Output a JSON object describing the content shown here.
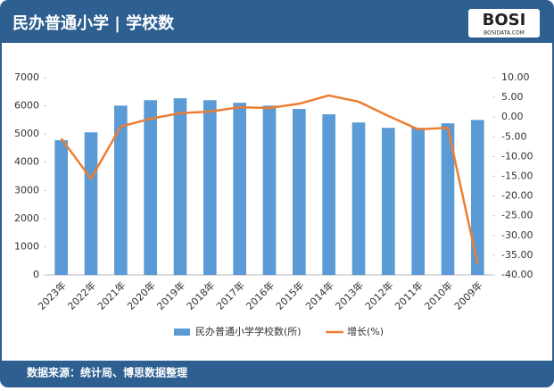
{
  "chart_data": {
    "type": "bar_line",
    "title": "民办普通小学 | 学校数",
    "source": "数据来源：统计局、博思数据整理",
    "categories": [
      "2023年",
      "2022年",
      "2021年",
      "2020年",
      "2019年",
      "2018年",
      "2017年",
      "2016年",
      "2015年",
      "2014年",
      "2013年",
      "2012年",
      "2011年",
      "2010年",
      "2009年"
    ],
    "series": [
      {
        "name": "民办普通小学学校数(所)",
        "color": "#5b9bd5",
        "type": "bar",
        "values": [
          4780,
          5060,
          6010,
          6200,
          6270,
          6200,
          6110,
          6010,
          5890,
          5700,
          5410,
          5220,
          5220,
          5380,
          5500
        ]
      },
      {
        "name": "增长(%)",
        "color": "#ed7d31",
        "type": "line",
        "axis": "y2",
        "values": [
          -5.4,
          -15.6,
          -2.4,
          -0.4,
          1.0,
          1.4,
          2.5,
          2.3,
          3.4,
          5.5,
          3.9,
          0.3,
          -3.1,
          -2.7,
          -37.2
        ]
      }
    ],
    "ylim": [
      0,
      7000
    ],
    "yticks": [
      0,
      1000,
      2000,
      3000,
      4000,
      5000,
      6000,
      7000
    ],
    "y2lim": [
      -40,
      10
    ],
    "y2ticks": [
      {
        "value": 10,
        "label": "10.00"
      },
      {
        "value": 5,
        "label": "5.00"
      },
      {
        "value": 0,
        "label": "0.00"
      },
      {
        "value": -5,
        "label": "-5.00"
      },
      {
        "value": -10,
        "label": "-10.00"
      },
      {
        "value": -15,
        "label": "-15.00"
      },
      {
        "value": -20,
        "label": "-20.00"
      },
      {
        "value": -25,
        "label": "-25.00"
      },
      {
        "value": -30,
        "label": "-30.00"
      },
      {
        "value": -35,
        "label": "-35.00"
      },
      {
        "value": -40,
        "label": "-40.00"
      }
    ],
    "legend": "bottom"
  },
  "logo": {
    "text": "BOSI",
    "subtext": "BOSIDATA.COM"
  }
}
